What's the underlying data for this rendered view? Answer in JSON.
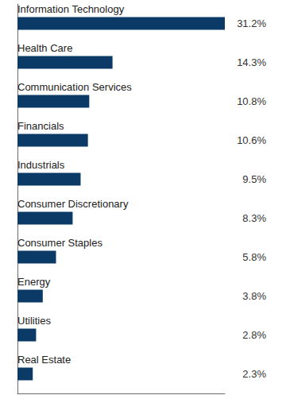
{
  "chart_data": {
    "type": "bar",
    "orientation": "horizontal",
    "categories": [
      "Information Technology",
      "Health Care",
      "Communication Services",
      "Financials",
      "Industrials",
      "Consumer Discretionary",
      "Consumer Staples",
      "Energy",
      "Utilities",
      "Real Estate"
    ],
    "values": [
      31.2,
      14.3,
      10.8,
      10.6,
      9.5,
      8.3,
      5.8,
      3.8,
      2.8,
      2.3
    ],
    "value_labels": [
      "31.2%",
      "14.3%",
      "10.8%",
      "10.6%",
      "9.5%",
      "8.3%",
      "5.8%",
      "3.8%",
      "2.8%",
      "2.3%"
    ],
    "color": "#0b3a66",
    "xlim": [
      0,
      31.2
    ],
    "data_labels": true,
    "tick_labels": false,
    "grid": false
  }
}
